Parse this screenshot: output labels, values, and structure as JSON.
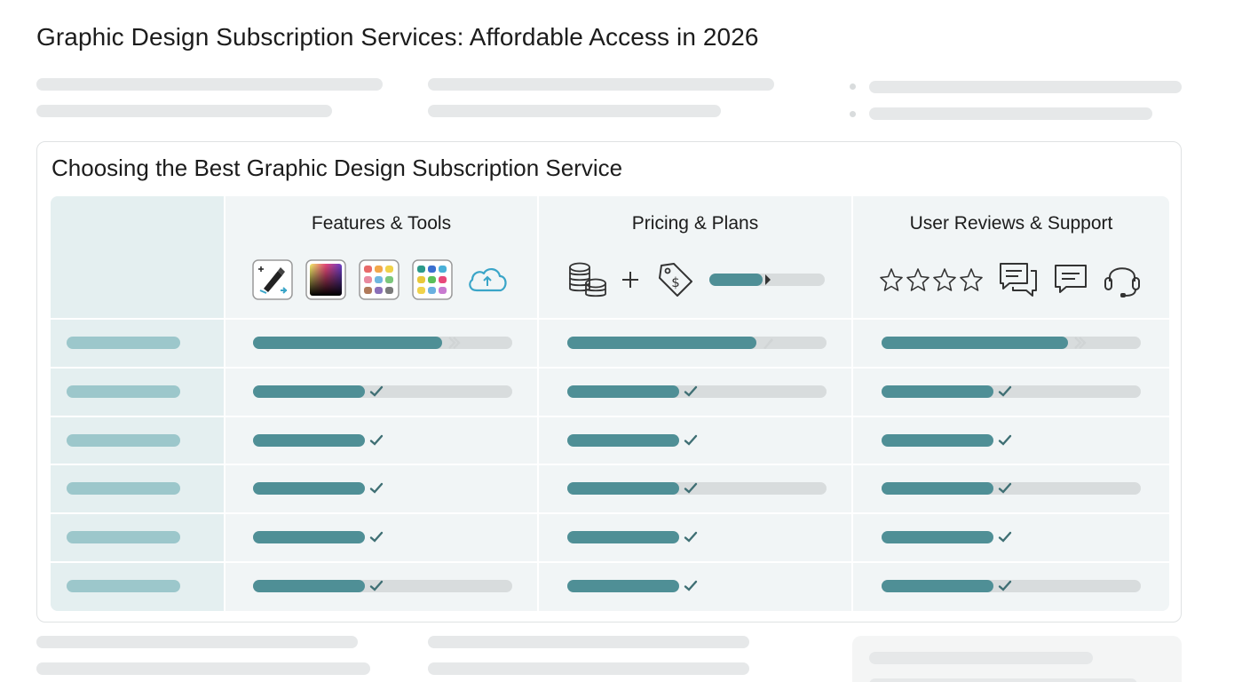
{
  "page": {
    "title": "Graphic Design Subscription Services: Affordable Access in 2026"
  },
  "card": {
    "title": "Choosing the Best Graphic Design Subscription Service",
    "columns": [
      {
        "key": "features",
        "label": "Features & Tools",
        "icons": [
          "pen-tool-icon",
          "color-gradient-icon",
          "color-palette-icon",
          "color-swatch-icon",
          "cloud-icon"
        ]
      },
      {
        "key": "pricing",
        "label": "Pricing & Plans",
        "icons": [
          "coin-stack-icon",
          "plus-icon",
          "price-tag-icon",
          "price-slider-icon"
        ]
      },
      {
        "key": "reviews",
        "label": "User Reviews & Support",
        "icons": [
          "star-icon",
          "star-icon",
          "star-icon",
          "star-icon",
          "chat-bubbles-icon",
          "chat-icon",
          "headset-icon"
        ]
      }
    ],
    "rows": [
      {
        "features": {
          "level": 0.73,
          "mark": "chevron",
          "track": true
        },
        "pricing": {
          "level": 0.73,
          "mark": "pencil",
          "track": true
        },
        "reviews": {
          "level": 0.72,
          "mark": "chevron",
          "track": true
        }
      },
      {
        "features": {
          "level": 0.43,
          "mark": "check",
          "track": true
        },
        "pricing": {
          "level": 0.43,
          "mark": "check",
          "track": true
        },
        "reviews": {
          "level": 0.43,
          "mark": "check",
          "track": true
        }
      },
      {
        "features": {
          "level": 0.43,
          "mark": "check",
          "track": false
        },
        "pricing": {
          "level": 0.43,
          "mark": "check",
          "track": false
        },
        "reviews": {
          "level": 0.43,
          "mark": "check",
          "track": false
        }
      },
      {
        "features": {
          "level": 0.43,
          "mark": "check",
          "track": false
        },
        "pricing": {
          "level": 0.43,
          "mark": "check",
          "track": true
        },
        "reviews": {
          "level": 0.43,
          "mark": "check",
          "track": true
        }
      },
      {
        "features": {
          "level": 0.43,
          "mark": "check",
          "track": false
        },
        "pricing": {
          "level": 0.43,
          "mark": "check",
          "track": false
        },
        "reviews": {
          "level": 0.43,
          "mark": "check",
          "track": false
        }
      },
      {
        "features": {
          "level": 0.43,
          "mark": "check",
          "track": true
        },
        "pricing": {
          "level": 0.43,
          "mark": "check",
          "track": false
        },
        "reviews": {
          "level": 0.43,
          "mark": "check",
          "track": true
        }
      }
    ]
  },
  "colors": {
    "accent": "#4f8f96",
    "label_bar": "#9cc7cb",
    "track": "#d8dcdd",
    "placeholder": "#e6e8e9"
  }
}
